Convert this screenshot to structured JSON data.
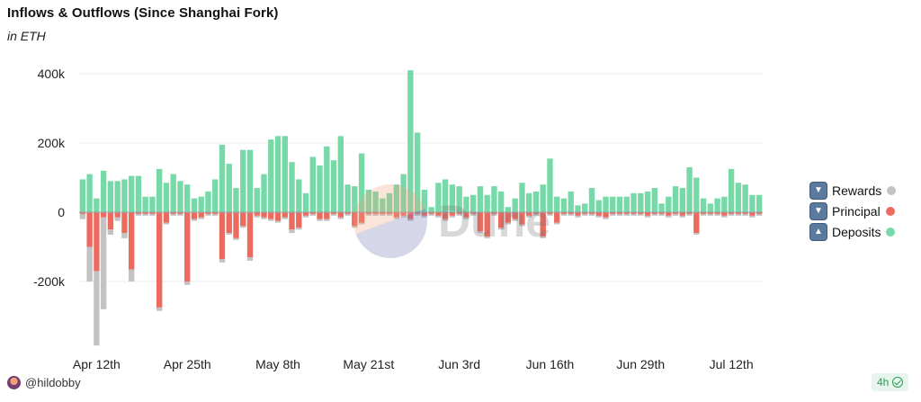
{
  "header": {
    "title": "Inflows & Outflows (Since Shanghai Fork)",
    "subtitle": "in ETH"
  },
  "legend": [
    {
      "label": "Rewards",
      "color": "#c3c3c3",
      "arrow": "down"
    },
    {
      "label": "Principal",
      "color": "#ec6a5e",
      "arrow": "down"
    },
    {
      "label": "Deposits",
      "color": "#77d9a8",
      "arrow": "up"
    }
  ],
  "footer": {
    "user": "@hildobby",
    "refresh": "4h"
  },
  "watermark": "Dune",
  "chart_data": {
    "type": "bar",
    "stacked": true,
    "ylim": [
      -400000,
      430000
    ],
    "yticks": [
      400000,
      200000,
      0,
      -200000
    ],
    "ytick_labels": [
      "400k",
      "200k",
      "0",
      "-200k"
    ],
    "xtick_labels": [
      "Apr 12th",
      "Apr 25th",
      "May 8th",
      "May 21st",
      "Jun 3rd",
      "Jun 16th",
      "Jun 29th",
      "Jul 12th"
    ],
    "xtick_index": [
      2,
      15,
      28,
      41,
      54,
      67,
      80,
      93
    ],
    "grid": true,
    "legend_position": "right",
    "series": [
      {
        "name": "Deposits",
        "values": [
          95000,
          110000,
          40000,
          120000,
          90000,
          90000,
          95000,
          105000,
          105000,
          45000,
          45000,
          125000,
          85000,
          110000,
          90000,
          80000,
          40000,
          45000,
          60000,
          95000,
          195000,
          140000,
          70000,
          180000,
          180000,
          70000,
          110000,
          210000,
          220000,
          220000,
          145000,
          95000,
          55000,
          160000,
          135000,
          190000,
          150000,
          220000,
          80000,
          75000,
          170000,
          65000,
          60000,
          40000,
          55000,
          80000,
          110000,
          410000,
          230000,
          65000,
          15000,
          85000,
          95000,
          80000,
          75000,
          45000,
          50000,
          75000,
          50000,
          75000,
          60000,
          15000,
          40000,
          85000,
          55000,
          60000,
          80000,
          155000,
          45000,
          40000,
          60000,
          20000,
          25000,
          70000,
          35000,
          45000,
          45000,
          45000,
          45000,
          55000,
          55000,
          60000,
          70000,
          25000,
          45000,
          75000,
          70000,
          130000,
          100000,
          40000,
          25000,
          40000,
          45000,
          125000,
          85000,
          80000,
          50000,
          50000
        ]
      },
      {
        "name": "Principal",
        "values": [
          -5000,
          -100000,
          -170000,
          -15000,
          -50000,
          -15000,
          -60000,
          -165000,
          -5000,
          -5000,
          -5000,
          -275000,
          -30000,
          -5000,
          -5000,
          -200000,
          -20000,
          -15000,
          -5000,
          -5000,
          -135000,
          -60000,
          -75000,
          -40000,
          -130000,
          -10000,
          -15000,
          -20000,
          -25000,
          -15000,
          -50000,
          -45000,
          -10000,
          -5000,
          -20000,
          -20000,
          -5000,
          -15000,
          -5000,
          -40000,
          -30000,
          -5000,
          -5000,
          -5000,
          -5000,
          -15000,
          -10000,
          -20000,
          -5000,
          -10000,
          -5000,
          -10000,
          -20000,
          -10000,
          -5000,
          -15000,
          -5000,
          -55000,
          -70000,
          -5000,
          -45000,
          -30000,
          -20000,
          -35000,
          -10000,
          -5000,
          -70000,
          -5000,
          -30000,
          -5000,
          -5000,
          -10000,
          -5000,
          -5000,
          -10000,
          -15000,
          -5000,
          -5000,
          -5000,
          -5000,
          -5000,
          -10000,
          -5000,
          -5000,
          -10000,
          -5000,
          -10000,
          -5000,
          -60000,
          -5000,
          -5000,
          -5000,
          -10000,
          -5000,
          -5000,
          -5000,
          -10000,
          -5000
        ]
      },
      {
        "name": "Rewards",
        "values": [
          -15000,
          -100000,
          -215000,
          -265000,
          -15000,
          -10000,
          -15000,
          -35000,
          -5000,
          -5000,
          -5000,
          -10000,
          -5000,
          -5000,
          -5000,
          -10000,
          -5000,
          -5000,
          -5000,
          -5000,
          -10000,
          -5000,
          -5000,
          -5000,
          -10000,
          -5000,
          -5000,
          -5000,
          -5000,
          -5000,
          -10000,
          -5000,
          -5000,
          -5000,
          -5000,
          -5000,
          -5000,
          -5000,
          -5000,
          -5000,
          -5000,
          -5000,
          -5000,
          -5000,
          -5000,
          -5000,
          -5000,
          -5000,
          -5000,
          -5000,
          -5000,
          -5000,
          -5000,
          -5000,
          -5000,
          -5000,
          -5000,
          -5000,
          -5000,
          -5000,
          -5000,
          -5000,
          -5000,
          -5000,
          -5000,
          -5000,
          -5000,
          -5000,
          -5000,
          -5000,
          -5000,
          -5000,
          -5000,
          -5000,
          -5000,
          -5000,
          -5000,
          -5000,
          -5000,
          -5000,
          -5000,
          -5000,
          -5000,
          -5000,
          -5000,
          -5000,
          -5000,
          -5000,
          -5000,
          -5000,
          -5000,
          -5000,
          -5000,
          -5000,
          -5000,
          -5000,
          -5000,
          -5000
        ]
      }
    ]
  }
}
